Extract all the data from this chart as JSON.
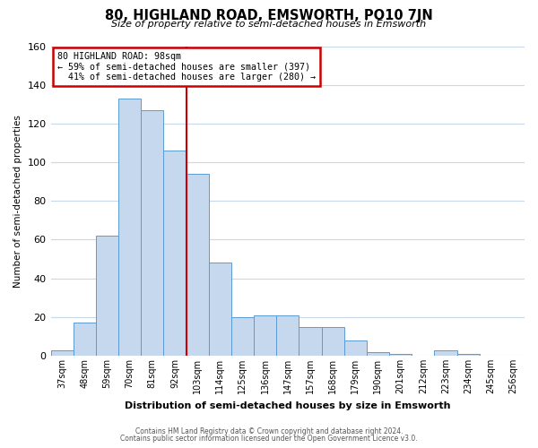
{
  "title": "80, HIGHLAND ROAD, EMSWORTH, PO10 7JN",
  "subtitle": "Size of property relative to semi-detached houses in Emsworth",
  "xlabel": "Distribution of semi-detached houses by size in Emsworth",
  "ylabel": "Number of semi-detached properties",
  "bar_labels": [
    "37sqm",
    "48sqm",
    "59sqm",
    "70sqm",
    "81sqm",
    "92sqm",
    "103sqm",
    "114sqm",
    "125sqm",
    "136sqm",
    "147sqm",
    "157sqm",
    "168sqm",
    "179sqm",
    "190sqm",
    "201sqm",
    "212sqm",
    "223sqm",
    "234sqm",
    "245sqm",
    "256sqm"
  ],
  "bar_heights": [
    3,
    17,
    62,
    133,
    127,
    106,
    94,
    48,
    20,
    21,
    21,
    15,
    15,
    8,
    2,
    1,
    0,
    3,
    1,
    0,
    0
  ],
  "bar_color": "#c5d8ed",
  "bar_edge_color": "#5b9bd5",
  "vline_x": 6,
  "vline_color": "#cc0000",
  "annotation_title": "80 HIGHLAND ROAD: 98sqm",
  "annotation_line1": "← 59% of semi-detached houses are smaller (397)",
  "annotation_line2": "  41% of semi-detached houses are larger (280) →",
  "annotation_box_color": "#cc0000",
  "ylim": [
    0,
    160
  ],
  "yticks": [
    0,
    20,
    40,
    60,
    80,
    100,
    120,
    140,
    160
  ],
  "footer1": "Contains HM Land Registry data © Crown copyright and database right 2024.",
  "footer2": "Contains public sector information licensed under the Open Government Licence v3.0.",
  "background_color": "#ffffff",
  "grid_color": "#c8d8e8",
  "figsize": [
    6.0,
    5.0
  ],
  "dpi": 100
}
